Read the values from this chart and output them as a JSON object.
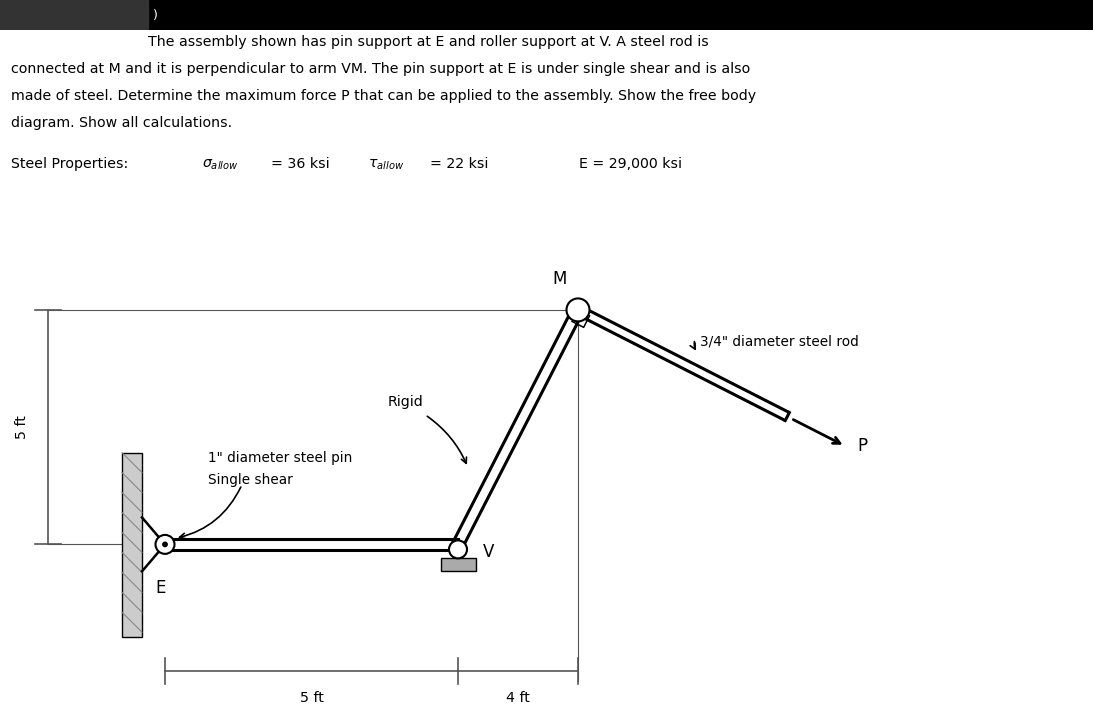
{
  "line1": "The assembly shown has pin support at E and roller support at V. A steel rod is",
  "line2": "connected at M and it is perpendicular to arm VM. The pin support at E is under single shear and is also",
  "line3": "made of steel. Determine the maximum force P that can be applied to the assembly. Show the free body",
  "line4": "diagram. Show all calculations.",
  "steel_props_label": "Steel Properties:",
  "sigma_text": "σallow = 36 ksi",
  "tau_text": "τallow = 22 ksi",
  "E_text": "E = 29,000 ksi",
  "dim_5ft_label": "5 ft",
  "dim_4ft_label": "4 ft",
  "dim_vert_label": "5 ft",
  "rod_label": "3/4\" diameter steel rod",
  "pin_label": "1\" diameter steel pin",
  "shear_label": "Single shear",
  "rigid_label": "Rigid",
  "point_E": "E",
  "point_V": "V",
  "point_M": "M",
  "point_P": "P",
  "bg_color": "#ffffff",
  "line_color": "#000000",
  "wall_color": "#aaaaaa",
  "dim_line_color": "#555555",
  "text_color": "#000000",
  "header_color": "#000000"
}
